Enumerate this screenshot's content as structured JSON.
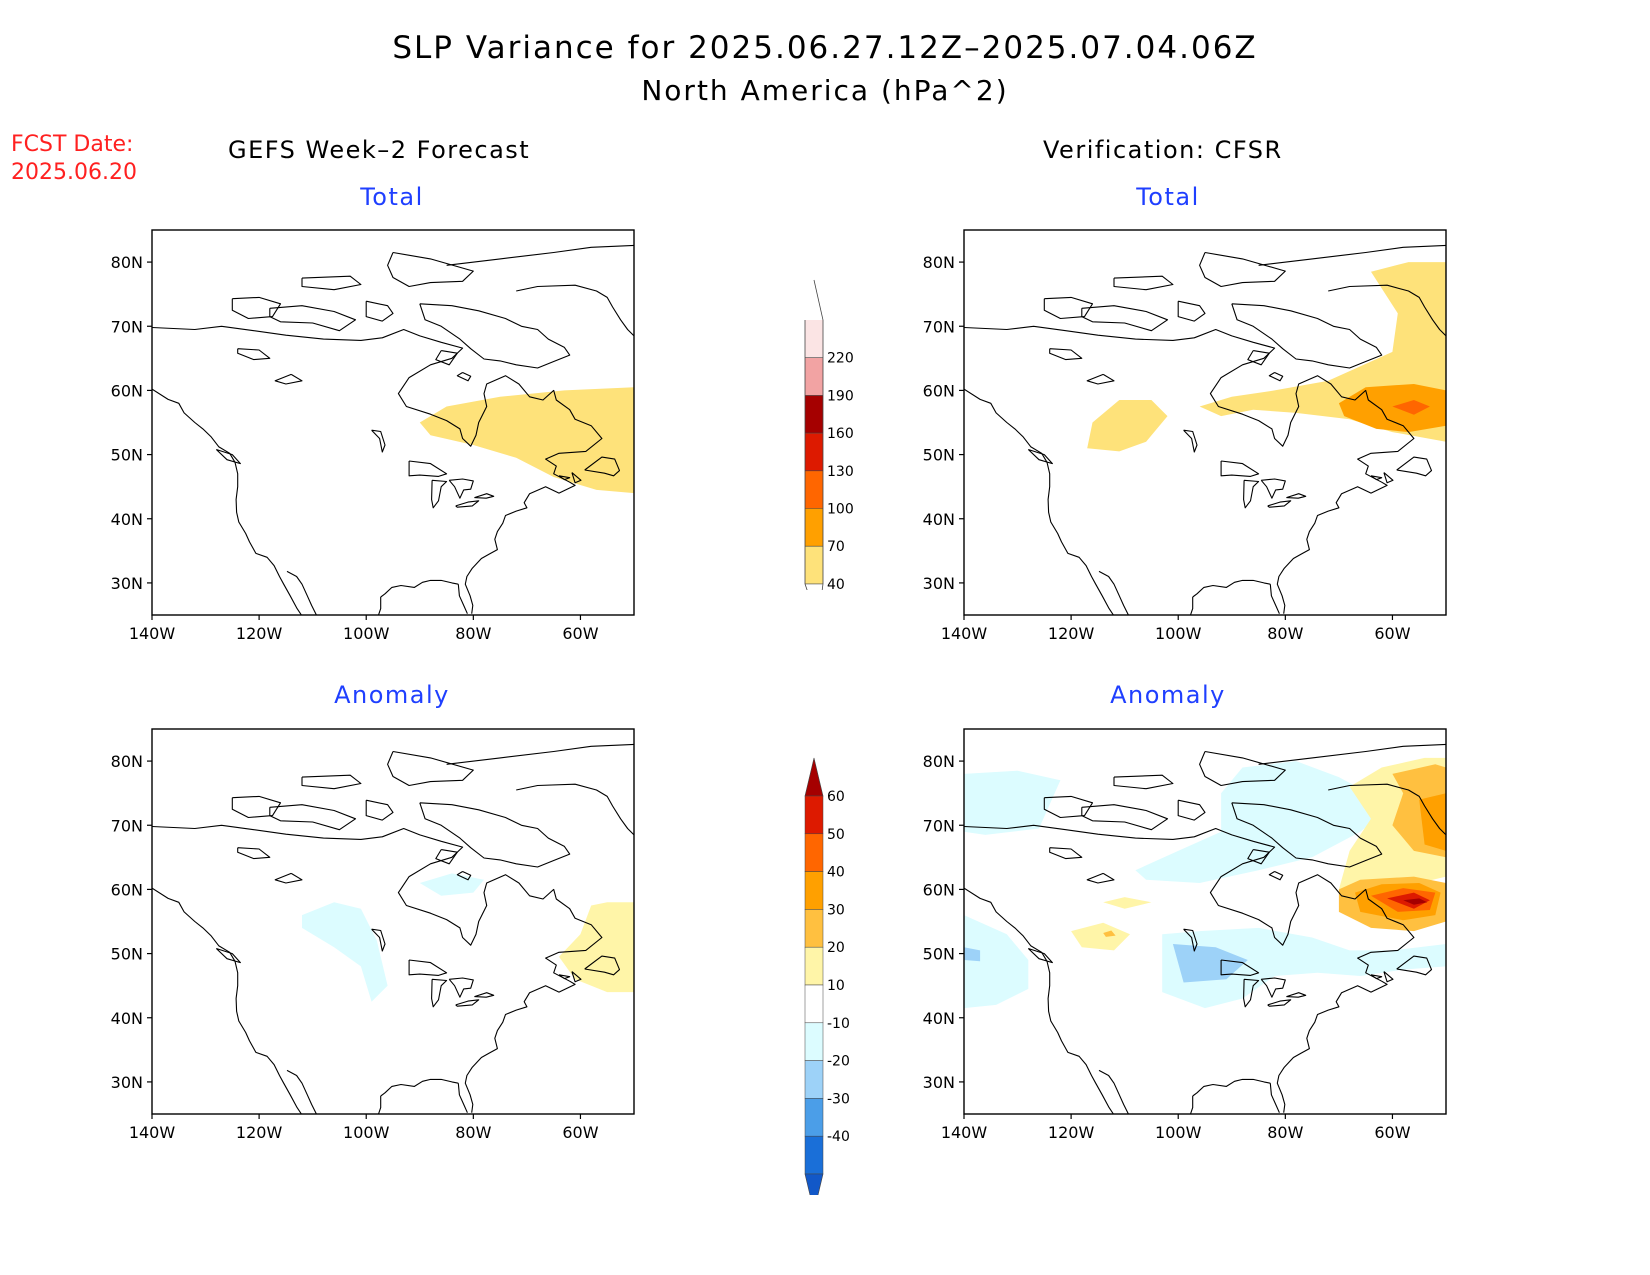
{
  "title": "SLP Variance for 2025.06.27.12Z–2025.07.04.06Z",
  "subtitle": "North America (hPa^2)",
  "fcst_date": {
    "label": "FCST Date:",
    "value": "2025.06.20"
  },
  "columns": {
    "left": "GEFS Week–2 Forecast",
    "right": "Verification: CFSR"
  },
  "panels": [
    {
      "id": "fcst-total",
      "title": "Total"
    },
    {
      "id": "verif-total",
      "title": "Total"
    },
    {
      "id": "fcst-anom",
      "title": "Anomaly"
    },
    {
      "id": "verif-anom",
      "title": "Anomaly"
    }
  ],
  "map_axes": {
    "lat_labels": [
      "80N",
      "70N",
      "60N",
      "50N",
      "40N",
      "30N"
    ],
    "lon_labels": [
      "140W",
      "120W",
      "100W",
      "80W",
      "60W"
    ],
    "lon_range": [
      -140,
      -50
    ],
    "lat_range": [
      25,
      85
    ]
  },
  "colorbars": {
    "total": {
      "labels": [
        "220",
        "190",
        "160",
        "130",
        "100",
        "70",
        "40"
      ],
      "colors": [
        "#fbe4e4",
        "#f2a3a3",
        "#a50000",
        "#dd1a00",
        "#ff6600",
        "#ffa000",
        "#fee27a"
      ]
    },
    "anomaly": {
      "labels": [
        "60",
        "50",
        "40",
        "30",
        "20",
        "10",
        "-10",
        "-20",
        "-30",
        "-40"
      ],
      "colors": [
        "#a50000",
        "#dd1a00",
        "#ff6600",
        "#ffa000",
        "#ffc040",
        "#fff5a8",
        "#ffffff",
        "#dcfcff",
        "#9dd2f8",
        "#4b9ee8",
        "#1a6fd8",
        "#1258c8"
      ]
    }
  }
}
